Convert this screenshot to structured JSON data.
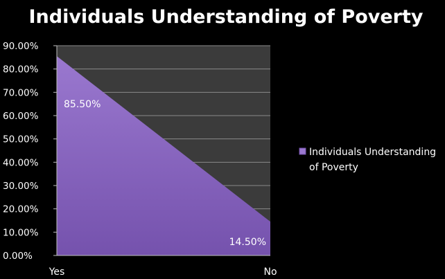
{
  "chart_data": {
    "type": "area",
    "title": "Individuals Understanding of Poverty",
    "categories": [
      "Yes",
      "No"
    ],
    "series": [
      {
        "name": "Individuals Understanding of Poverty",
        "values": [
          85.5,
          14.5
        ]
      }
    ],
    "data_labels": [
      "85.50%",
      "14.50%"
    ],
    "y_ticks": [
      "0.00%",
      "10.00%",
      "20.00%",
      "30.00%",
      "40.00%",
      "50.00%",
      "60.00%",
      "70.00%",
      "80.00%",
      "90.00%"
    ],
    "ylim": [
      0,
      90
    ],
    "grid": true,
    "legend_position": "right",
    "legend_lines": [
      "Individuals Understanding",
      "of Poverty"
    ],
    "colors": {
      "background": "#000000",
      "plot_area": "#3b3b3b",
      "area_fill_top": "#9a78cf",
      "area_fill_bottom": "#7552ad",
      "gridline": "#8a8a8a",
      "text": "#ffffff"
    }
  }
}
